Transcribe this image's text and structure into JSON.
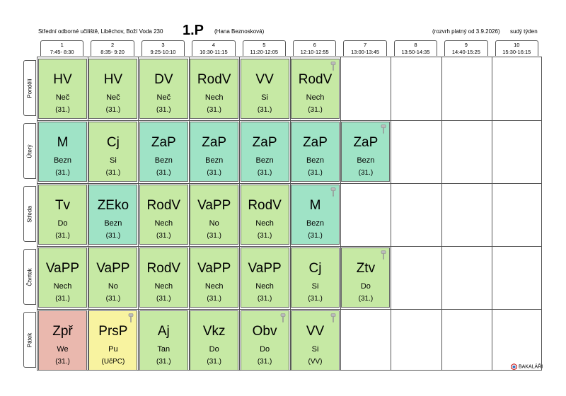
{
  "header": {
    "school": "Střední odborné učiliště, Liběchov, Boží Voda 230",
    "class_name": "1.P",
    "teacher": "(Hana Beznosková)",
    "valid_from": "(rozvrh platný od 3.9.2026)",
    "week_type": "sudý týden"
  },
  "periods": [
    {
      "num": "1",
      "time": "7:45- 8:30"
    },
    {
      "num": "2",
      "time": "8:35- 9:20"
    },
    {
      "num": "3",
      "time": "9:25-10:10"
    },
    {
      "num": "4",
      "time": "10:30-11:15"
    },
    {
      "num": "5",
      "time": "11:20-12:05"
    },
    {
      "num": "6",
      "time": "12:10-12:55"
    },
    {
      "num": "7",
      "time": "13:00-13:45"
    },
    {
      "num": "8",
      "time": "13:50-14:35"
    },
    {
      "num": "9",
      "time": "14:40-15:25"
    },
    {
      "num": "10",
      "time": "15:30-16:15"
    }
  ],
  "days": [
    "Pondělí",
    "Úterý",
    "Středa",
    "Čtvrtek",
    "Pátek"
  ],
  "colors": {
    "green": "#c6e9a4",
    "teal": "#9fe3c6",
    "red": "#eab8ae",
    "yellow": "#f8f3a0",
    "grid": "#555555"
  },
  "lessons": [
    [
      {
        "subject": "HV",
        "teacher": "Neč",
        "room": "(31.)",
        "color": "green"
      },
      {
        "subject": "HV",
        "teacher": "Neč",
        "room": "(31.)",
        "color": "green"
      },
      {
        "subject": "DV",
        "teacher": "Neč",
        "room": "(31.)",
        "color": "green"
      },
      {
        "subject": "RodV",
        "teacher": "Nech",
        "room": "(31.)",
        "color": "green"
      },
      {
        "subject": "VV",
        "teacher": "Si",
        "room": "(31.)",
        "color": "green"
      },
      {
        "subject": "RodV",
        "teacher": "Nech",
        "room": "(31.)",
        "color": "green",
        "pin": true
      }
    ],
    [
      {
        "subject": "M",
        "teacher": "Bezn",
        "room": "(31.)",
        "color": "teal"
      },
      {
        "subject": "Cj",
        "teacher": "Si",
        "room": "(31.)",
        "color": "green"
      },
      {
        "subject": "ZaP",
        "teacher": "Bezn",
        "room": "(31.)",
        "color": "teal"
      },
      {
        "subject": "ZaP",
        "teacher": "Bezn",
        "room": "(31.)",
        "color": "teal"
      },
      {
        "subject": "ZaP",
        "teacher": "Bezn",
        "room": "(31.)",
        "color": "teal"
      },
      {
        "subject": "ZaP",
        "teacher": "Bezn",
        "room": "(31.)",
        "color": "teal"
      },
      {
        "subject": "ZaP",
        "teacher": "Bezn",
        "room": "(31.)",
        "color": "teal",
        "pin": true
      }
    ],
    [
      {
        "subject": "Tv",
        "teacher": "Do",
        "room": "(31.)",
        "color": "green"
      },
      {
        "subject": "ZEko",
        "teacher": "Bezn",
        "room": "(31.)",
        "color": "teal"
      },
      {
        "subject": "RodV",
        "teacher": "Nech",
        "room": "(31.)",
        "color": "green"
      },
      {
        "subject": "VaPP",
        "teacher": "No",
        "room": "(31.)",
        "color": "green"
      },
      {
        "subject": "RodV",
        "teacher": "Nech",
        "room": "(31.)",
        "color": "green"
      },
      {
        "subject": "M",
        "teacher": "Bezn",
        "room": "(31.)",
        "color": "teal",
        "pin": true
      }
    ],
    [
      {
        "subject": "VaPP",
        "teacher": "Nech",
        "room": "(31.)",
        "color": "green"
      },
      {
        "subject": "VaPP",
        "teacher": "No",
        "room": "(31.)",
        "color": "green"
      },
      {
        "subject": "RodV",
        "teacher": "Nech",
        "room": "(31.)",
        "color": "green"
      },
      {
        "subject": "VaPP",
        "teacher": "Nech",
        "room": "(31.)",
        "color": "green"
      },
      {
        "subject": "VaPP",
        "teacher": "Nech",
        "room": "(31.)",
        "color": "green"
      },
      {
        "subject": "Cj",
        "teacher": "Si",
        "room": "(31.)",
        "color": "green"
      },
      {
        "subject": "Ztv",
        "teacher": "Do",
        "room": "(31.)",
        "color": "green",
        "pin": true
      }
    ],
    [
      {
        "subject": "Zpř",
        "teacher": "We",
        "room": "(31.)",
        "color": "red"
      },
      {
        "subject": "PrsP",
        "teacher": "Pu",
        "room": "(UčPC)",
        "color": "yellow",
        "pin": true
      },
      {
        "subject": "Aj",
        "teacher": "Tan",
        "room": "(31.)",
        "color": "green"
      },
      {
        "subject": "Vkz",
        "teacher": "Do",
        "room": "(31.)",
        "color": "green"
      },
      {
        "subject": "Obv",
        "teacher": "Do",
        "room": "(31.)",
        "color": "green",
        "pin": true
      },
      {
        "subject": "VV",
        "teacher": "Si",
        "room": "(VV)",
        "color": "green",
        "pin": true
      }
    ]
  ],
  "footer": {
    "logo_text": "BAKALÁŘI",
    "logo_icon": "bakalari-logo-icon"
  }
}
